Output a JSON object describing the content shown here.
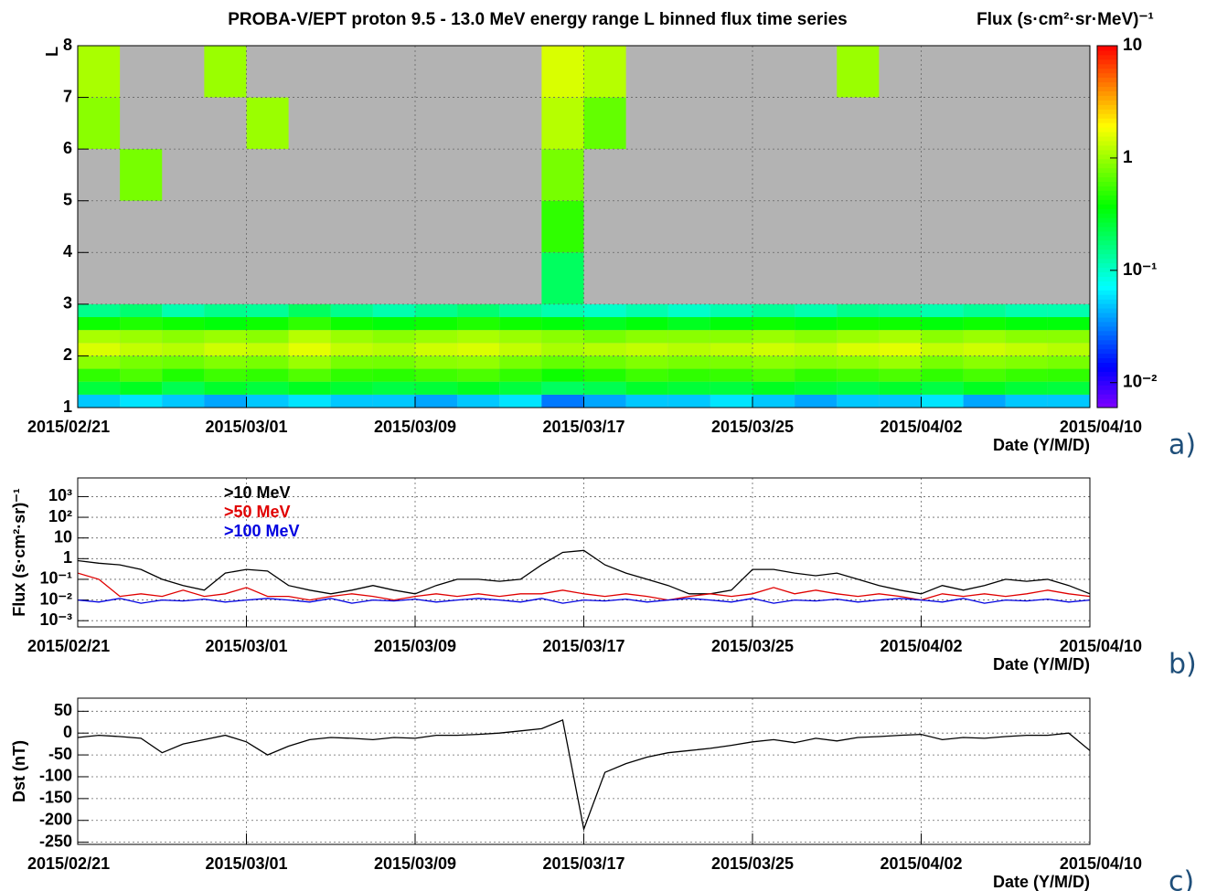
{
  "chart_data": [
    {
      "type": "heatmap",
      "title": "PROBA-V/EPT proton 9.5 - 13.0 MeV energy range L binned flux time series",
      "ylabel": "L",
      "xlabel": "Date (Y/M/D)",
      "zlabel": "Flux (s·cm²·sr·MeV)⁻¹",
      "panel": "a)",
      "xlim": [
        "2015/02/21",
        "2015/04/10"
      ],
      "xticks": [
        "2015/02/21",
        "2015/03/01",
        "2015/03/09",
        "2015/03/17",
        "2015/03/25",
        "2015/04/02",
        "2015/04/10"
      ],
      "ylim": [
        1,
        8
      ],
      "yticks": [
        1,
        2,
        3,
        4,
        5,
        6,
        7,
        8
      ],
      "zlim": [
        0.006,
        10
      ],
      "zlog": true,
      "zticks": [
        {
          "value": 0.01,
          "label": "10⁻²"
        },
        {
          "value": 0.1,
          "label": "10⁻¹"
        },
        1,
        10
      ],
      "grid": true,
      "xbins": [
        "2015/02/21",
        "2015/02/23",
        "2015/02/25",
        "2015/02/27",
        "2015/03/01",
        "2015/03/03",
        "2015/03/05",
        "2015/03/07",
        "2015/03/09",
        "2015/03/11",
        "2015/03/13",
        "2015/03/15",
        "2015/03/17",
        "2015/03/19",
        "2015/03/21",
        "2015/03/23",
        "2015/03/25",
        "2015/03/27",
        "2015/03/29",
        "2015/03/31",
        "2015/04/02",
        "2015/04/04",
        "2015/04/06",
        "2015/04/08",
        "2015/04/10"
      ],
      "ybins": [
        1,
        1.25,
        1.5,
        1.75,
        2,
        2.25,
        2.5,
        2.75,
        3,
        4,
        5,
        6,
        7,
        8
      ],
      "z": [
        [
          0.05,
          0.06,
          0.05,
          0.04,
          0.05,
          0.06,
          0.05,
          0.05,
          0.04,
          0.05,
          0.06,
          0.03,
          0.04,
          0.05,
          0.05,
          0.06,
          0.05,
          0.04,
          0.05,
          0.05,
          0.06,
          0.04,
          0.05,
          0.05
        ],
        [
          0.25,
          0.3,
          0.22,
          0.28,
          0.25,
          0.3,
          0.27,
          0.24,
          0.26,
          0.3,
          0.25,
          0.2,
          0.22,
          0.28,
          0.26,
          0.25,
          0.3,
          0.27,
          0.25,
          0.28,
          0.24,
          0.3,
          0.26,
          0.25
        ],
        [
          0.5,
          0.6,
          0.45,
          0.55,
          0.5,
          0.62,
          0.5,
          0.48,
          0.55,
          0.6,
          0.5,
          0.4,
          0.45,
          0.55,
          0.5,
          0.52,
          0.6,
          0.5,
          0.55,
          0.6,
          0.5,
          0.58,
          0.52,
          0.5
        ],
        [
          0.9,
          0.8,
          0.75,
          0.85,
          0.8,
          1.0,
          0.8,
          0.78,
          0.9,
          0.95,
          0.8,
          0.7,
          0.75,
          0.85,
          0.8,
          0.82,
          0.9,
          0.85,
          0.9,
          1.0,
          0.8,
          0.9,
          0.85,
          0.8
        ],
        [
          1.5,
          1.3,
          1.2,
          1.4,
          1.3,
          1.6,
          1.3,
          1.2,
          1.4,
          1.5,
          1.3,
          1.1,
          1.2,
          1.3,
          1.2,
          1.3,
          1.4,
          1.3,
          1.5,
          1.6,
          1.3,
          1.4,
          1.3,
          1.2
        ],
        [
          1.1,
          1.0,
          0.9,
          1.0,
          0.9,
          1.2,
          1.0,
          0.9,
          1.0,
          1.1,
          1.0,
          0.9,
          0.8,
          0.9,
          0.9,
          0.9,
          1.0,
          0.9,
          1.0,
          1.1,
          0.9,
          1.0,
          0.9,
          0.9
        ],
        [
          0.4,
          0.45,
          0.4,
          0.35,
          0.4,
          0.5,
          0.4,
          0.35,
          0.4,
          0.45,
          0.4,
          0.35,
          0.3,
          0.35,
          0.3,
          0.35,
          0.4,
          0.35,
          0.4,
          0.4,
          0.35,
          0.4,
          0.35,
          0.35
        ],
        [
          0.15,
          0.18,
          0.12,
          0.15,
          0.14,
          0.2,
          0.15,
          0.12,
          0.15,
          0.18,
          0.14,
          0.12,
          0.1,
          0.12,
          0.1,
          0.12,
          0.14,
          0.12,
          0.15,
          0.14,
          0.12,
          0.14,
          0.12,
          0.12
        ],
        [
          null,
          null,
          null,
          null,
          null,
          null,
          null,
          null,
          null,
          null,
          null,
          0.2,
          null,
          null,
          null,
          null,
          null,
          null,
          null,
          null,
          null,
          null,
          null,
          null
        ],
        [
          null,
          null,
          null,
          null,
          null,
          null,
          null,
          null,
          null,
          null,
          null,
          0.5,
          null,
          null,
          null,
          null,
          null,
          null,
          null,
          null,
          null,
          null,
          null,
          null
        ],
        [
          null,
          0.8,
          null,
          null,
          null,
          null,
          null,
          null,
          null,
          null,
          null,
          0.8,
          null,
          null,
          null,
          null,
          null,
          null,
          null,
          null,
          null,
          null,
          null,
          null
        ],
        [
          0.9,
          null,
          null,
          null,
          1.0,
          null,
          null,
          null,
          null,
          null,
          null,
          1.2,
          0.7,
          null,
          null,
          null,
          null,
          null,
          null,
          null,
          null,
          null,
          null,
          null
        ],
        [
          1.1,
          null,
          null,
          1.0,
          null,
          null,
          null,
          null,
          null,
          null,
          null,
          1.5,
          1.2,
          null,
          null,
          null,
          null,
          null,
          1.0,
          null,
          null,
          null,
          null,
          null
        ]
      ]
    },
    {
      "type": "line",
      "ylabel": "Flux (s·cm²·sr)⁻¹",
      "xlabel": "Date (Y/M/D)",
      "panel": "b)",
      "xlim": [
        "2015/02/21",
        "2015/04/10"
      ],
      "xticks": [
        "2015/02/21",
        "2015/03/01",
        "2015/03/09",
        "2015/03/17",
        "2015/03/25",
        "2015/04/02",
        "2015/04/10"
      ],
      "ylim": [
        0.0005,
        8000
      ],
      "ylog": true,
      "yticks": [
        {
          "value": 0.001,
          "label": "10⁻³"
        },
        {
          "value": 0.01,
          "label": "10⁻²"
        },
        {
          "value": 0.1,
          "label": "10⁻¹"
        },
        1,
        10,
        {
          "value": 100,
          "label": "10²"
        },
        {
          "value": 1000,
          "label": "10³"
        }
      ],
      "grid": true,
      "legend": "top-left",
      "x": [
        "2015/02/21",
        "2015/02/22",
        "2015/02/23",
        "2015/02/24",
        "2015/02/25",
        "2015/02/26",
        "2015/02/27",
        "2015/02/28",
        "2015/03/01",
        "2015/03/02",
        "2015/03/03",
        "2015/03/04",
        "2015/03/05",
        "2015/03/06",
        "2015/03/07",
        "2015/03/08",
        "2015/03/09",
        "2015/03/10",
        "2015/03/11",
        "2015/03/12",
        "2015/03/13",
        "2015/03/14",
        "2015/03/15",
        "2015/03/16",
        "2015/03/17",
        "2015/03/18",
        "2015/03/19",
        "2015/03/20",
        "2015/03/21",
        "2015/03/22",
        "2015/03/23",
        "2015/03/24",
        "2015/03/25",
        "2015/03/26",
        "2015/03/27",
        "2015/03/28",
        "2015/03/29",
        "2015/03/30",
        "2015/03/31",
        "2015/04/01",
        "2015/04/02",
        "2015/04/03",
        "2015/04/04",
        "2015/04/05",
        "2015/04/06",
        "2015/04/07",
        "2015/04/08",
        "2015/04/09",
        "2015/04/10"
      ],
      "series": [
        {
          "name": ">10 MeV",
          "color": "#000000",
          "values": [
            0.8,
            0.6,
            0.5,
            0.3,
            0.1,
            0.05,
            0.03,
            0.2,
            0.3,
            0.25,
            0.05,
            0.03,
            0.02,
            0.03,
            0.05,
            0.03,
            0.02,
            0.05,
            0.1,
            0.1,
            0.08,
            0.1,
            0.5,
            2,
            2.5,
            0.5,
            0.2,
            0.1,
            0.05,
            0.02,
            0.02,
            0.03,
            0.3,
            0.3,
            0.2,
            0.15,
            0.2,
            0.1,
            0.05,
            0.03,
            0.02,
            0.05,
            0.03,
            0.05,
            0.1,
            0.08,
            0.1,
            0.05,
            0.02
          ]
        },
        {
          "name": ">50 MeV",
          "color": "#e00000",
          "values": [
            0.2,
            0.1,
            0.015,
            0.02,
            0.015,
            0.03,
            0.015,
            0.02,
            0.04,
            0.015,
            0.015,
            0.01,
            0.015,
            0.02,
            0.015,
            0.01,
            0.015,
            0.02,
            0.015,
            0.02,
            0.015,
            0.02,
            0.02,
            0.03,
            0.02,
            0.015,
            0.02,
            0.015,
            0.01,
            0.015,
            0.02,
            0.015,
            0.02,
            0.04,
            0.02,
            0.03,
            0.02,
            0.015,
            0.02,
            0.015,
            0.01,
            0.02,
            0.015,
            0.02,
            0.015,
            0.02,
            0.03,
            0.02,
            0.015
          ]
        },
        {
          "name": ">100 MeV",
          "color": "#0000e0",
          "values": [
            0.01,
            0.008,
            0.012,
            0.007,
            0.01,
            0.009,
            0.011,
            0.008,
            0.01,
            0.012,
            0.01,
            0.008,
            0.012,
            0.007,
            0.01,
            0.009,
            0.011,
            0.008,
            0.01,
            0.012,
            0.01,
            0.008,
            0.012,
            0.007,
            0.01,
            0.009,
            0.011,
            0.008,
            0.01,
            0.012,
            0.01,
            0.008,
            0.012,
            0.007,
            0.01,
            0.009,
            0.011,
            0.008,
            0.01,
            0.012,
            0.01,
            0.008,
            0.012,
            0.007,
            0.01,
            0.009,
            0.011,
            0.008,
            0.01
          ]
        }
      ]
    },
    {
      "type": "line",
      "ylabel": "Dst (nT)",
      "xlabel": "Date (Y/M/D)",
      "panel": "c)",
      "xlim": [
        "2015/02/21",
        "2015/04/10"
      ],
      "xticks": [
        "2015/02/21",
        "2015/03/01",
        "2015/03/09",
        "2015/03/17",
        "2015/03/25",
        "2015/04/02",
        "2015/04/10"
      ],
      "ylim": [
        -255,
        80
      ],
      "yticks": [
        -250,
        -200,
        -150,
        -100,
        -50,
        0,
        50
      ],
      "grid": true,
      "x": [
        "2015/02/21",
        "2015/02/22",
        "2015/02/23",
        "2015/02/24",
        "2015/02/25",
        "2015/02/26",
        "2015/02/27",
        "2015/02/28",
        "2015/03/01",
        "2015/03/02",
        "2015/03/03",
        "2015/03/04",
        "2015/03/05",
        "2015/03/06",
        "2015/03/07",
        "2015/03/08",
        "2015/03/09",
        "2015/03/10",
        "2015/03/11",
        "2015/03/12",
        "2015/03/13",
        "2015/03/14",
        "2015/03/15",
        "2015/03/16",
        "2015/03/17",
        "2015/03/18",
        "2015/03/19",
        "2015/03/20",
        "2015/03/21",
        "2015/03/22",
        "2015/03/23",
        "2015/03/24",
        "2015/03/25",
        "2015/03/26",
        "2015/03/27",
        "2015/03/28",
        "2015/03/29",
        "2015/03/30",
        "2015/03/31",
        "2015/04/01",
        "2015/04/02",
        "2015/04/03",
        "2015/04/04",
        "2015/04/05",
        "2015/04/06",
        "2015/04/07",
        "2015/04/08",
        "2015/04/09",
        "2015/04/10"
      ],
      "series": [
        {
          "color": "#000000",
          "values": [
            -10,
            -5,
            -8,
            -12,
            -45,
            -25,
            -15,
            -5,
            -20,
            -50,
            -30,
            -15,
            -10,
            -12,
            -15,
            -10,
            -12,
            -5,
            -5,
            -3,
            0,
            5,
            10,
            30,
            -220,
            -90,
            -70,
            -55,
            -45,
            -40,
            -35,
            -28,
            -20,
            -15,
            -22,
            -12,
            -18,
            -10,
            -8,
            -5,
            -3,
            -15,
            -10,
            -12,
            -8,
            -5,
            -5,
            0,
            -40
          ]
        }
      ]
    }
  ]
}
